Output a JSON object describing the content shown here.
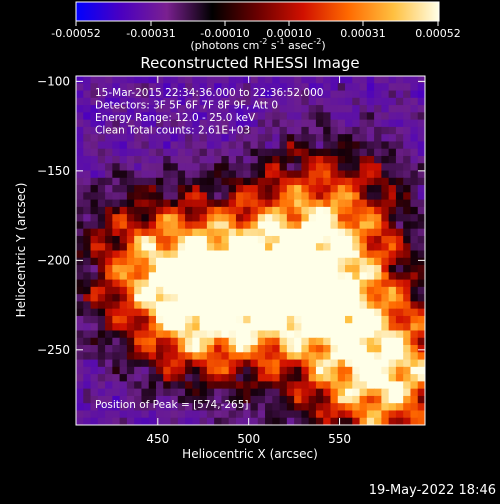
{
  "chart_data": {
    "type": "heatmap",
    "title": "Reconstructed RHESSI Image",
    "colorbar": {
      "ticks": [
        "-0.00052",
        "-0.00031",
        "-0.00010",
        "0.00010",
        "0.00031",
        "0.00052"
      ],
      "unit_prefix": "(photons cm",
      "unit_exp1": "-2",
      "unit_mid": " s",
      "unit_exp2": "-1",
      "unit_mid2": " asec",
      "unit_exp3": "-2",
      "unit_suffix": ")",
      "colors": [
        "#0000ff",
        "#4b00c0",
        "#7a2090",
        "#000000",
        "#6a0000",
        "#d01000",
        "#ff6a00",
        "#ffc040",
        "#ffffe8"
      ]
    },
    "xlabel": "Heliocentric X (arcsec)",
    "ylabel": "Heliocentric Y (arcsec)",
    "xlim": [
      405,
      597
    ],
    "ylim": [
      -292,
      -97
    ],
    "xticks": [
      450,
      500,
      550
    ],
    "yticks": [
      -100,
      -150,
      -200,
      -250
    ],
    "info_lines": [
      "15-Mar-2015 22:34:36.000 to 22:36:52.000",
      "Detectors: 3F 5F 6F 7F 8F 9F, Att 0",
      "Energy Range: 12.0 - 25.0 keV",
      "Clean     Total counts: 2.61E+03"
    ],
    "peak_label": "Position of Peak = [574,-265]",
    "peak": [
      574,
      -265
    ],
    "sources": [
      {
        "x": 574,
        "y": -265,
        "relative_intensity": 1.0
      },
      {
        "x": 475,
        "y": -225,
        "relative_intensity": 0.85
      },
      {
        "x": 542,
        "y": -220,
        "relative_intensity": 0.8
      },
      {
        "x": 543,
        "y": -175,
        "relative_intensity": 0.65
      },
      {
        "x": 445,
        "y": -200,
        "relative_intensity": 0.55
      },
      {
        "x": 500,
        "y": -210,
        "relative_intensity": 0.6
      }
    ]
  },
  "footer": {
    "timestamp": "19-May-2022 18:46"
  }
}
